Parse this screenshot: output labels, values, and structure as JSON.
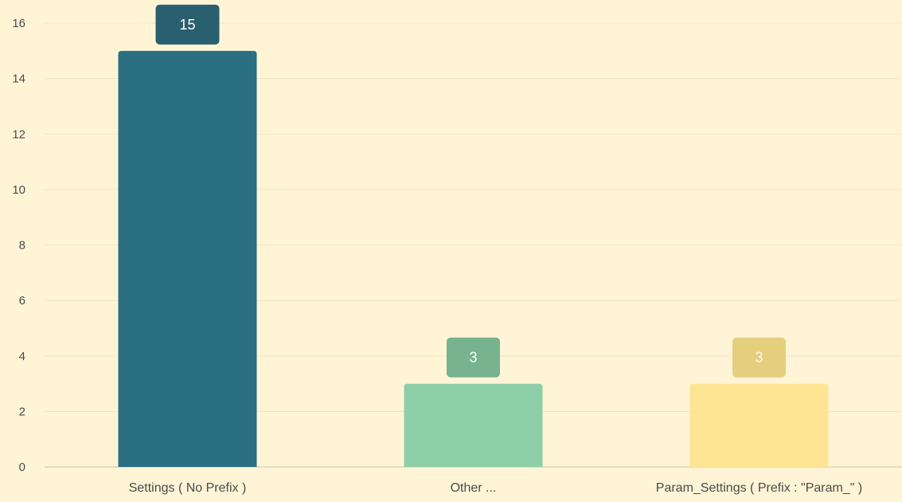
{
  "chart_data": {
    "type": "bar",
    "categories": [
      "Settings ( No Prefix )",
      "Other ...",
      "Param_Settings ( Prefix : \"Param_\" )"
    ],
    "values": [
      15,
      3,
      3
    ],
    "data_labels": [
      "15",
      "3",
      "3"
    ],
    "colors": [
      "#2a6f82",
      "#8ecfa9",
      "#fde594"
    ],
    "label_box_colors": [
      "#2a5f70",
      "#76b38e",
      "#e4cf7e"
    ],
    "label_text_colors": [
      "#ffffff",
      "#ffffff",
      "#fff8e6"
    ],
    "ylim": [
      0,
      16
    ],
    "yticks": [
      0,
      2,
      4,
      6,
      8,
      10,
      12,
      14,
      16
    ],
    "grid": true,
    "legend": "none",
    "title": "",
    "xlabel": "",
    "ylabel": ""
  },
  "theme": {
    "background": "#fff5d6",
    "gridline": "#f1e5c0",
    "axis_line": "#d9ccaa",
    "tick_text": "#4a4a4a"
  }
}
